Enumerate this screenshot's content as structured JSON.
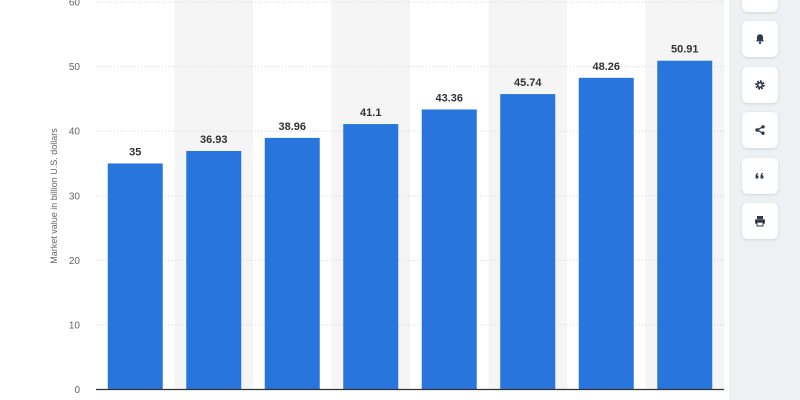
{
  "chart_data": {
    "type": "bar",
    "categories": [
      "",
      "",
      "",
      "",
      "",
      "",
      "",
      ""
    ],
    "values": [
      35,
      36.93,
      38.96,
      41.1,
      43.36,
      45.74,
      48.26,
      50.91
    ],
    "value_labels": [
      "35",
      "36.93",
      "38.96",
      "41.1",
      "43.36",
      "45.74",
      "48.26",
      "50.91"
    ],
    "title": "",
    "xlabel": "",
    "ylabel": "Market value in billion U.S. dollars",
    "ylim": [
      0,
      60
    ],
    "yticks": [
      0,
      10,
      20,
      30,
      40,
      50,
      60
    ],
    "grid": true,
    "bar_color": "#2876dd",
    "alt_band_color": "#f5f5f5"
  },
  "toolbar": {
    "items": [
      {
        "icon": "star-icon"
      },
      {
        "icon": "bell-icon"
      },
      {
        "icon": "gear-icon"
      },
      {
        "icon": "share-icon"
      },
      {
        "icon": "quote-icon"
      },
      {
        "icon": "print-icon"
      }
    ]
  }
}
